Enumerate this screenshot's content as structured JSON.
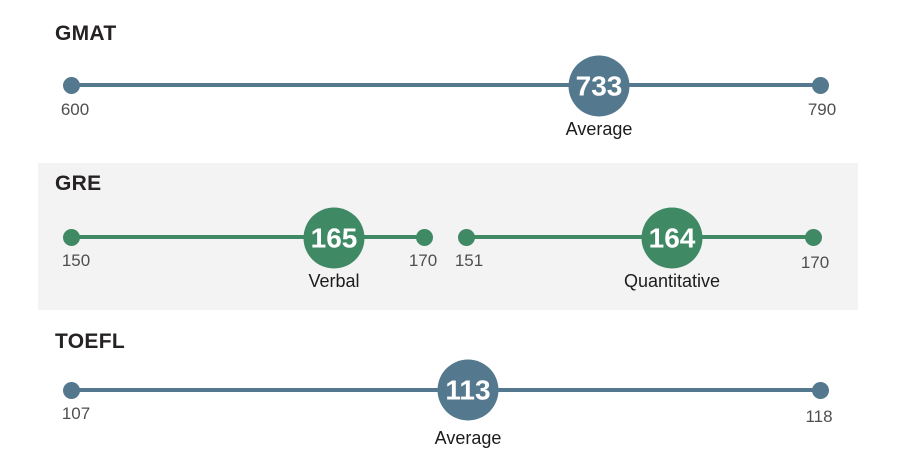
{
  "palette": {
    "blue": "#54788e",
    "green": "#3f8a64",
    "section_bg": "#f3f3f3",
    "title_color": "#262224",
    "range_label_color": "#4f4f4f",
    "avg_label_color": "#1c1c1c",
    "circle_text_color": "#ffffff"
  },
  "sections": {
    "gmat": {
      "title": "GMAT",
      "min": "600",
      "max": "790",
      "average_value": "733",
      "average_label": "Average"
    },
    "gre": {
      "title": "GRE",
      "verbal": {
        "min": "150",
        "max": "170",
        "average_value": "165",
        "label": "Verbal"
      },
      "quantitative": {
        "min": "151",
        "max": "170",
        "average_value": "164",
        "label": "Quantitative"
      }
    },
    "toefl": {
      "title": "TOEFL",
      "min": "107",
      "max": "118",
      "average_value": "113",
      "average_label": "Average"
    }
  },
  "chart_data": [
    {
      "type": "line",
      "subtype": "dumbbell-range",
      "title": "GMAT",
      "color": "#54788e",
      "series": [
        {
          "name": "Average",
          "min": 600,
          "max": 790,
          "average": 733
        }
      ]
    },
    {
      "type": "line",
      "subtype": "dumbbell-range",
      "title": "GRE",
      "color": "#3f8a64",
      "highlighted_background": "#f3f3f3",
      "series": [
        {
          "name": "Verbal",
          "min": 150,
          "max": 170,
          "average": 165
        },
        {
          "name": "Quantitative",
          "min": 151,
          "max": 170,
          "average": 164
        }
      ]
    },
    {
      "type": "line",
      "subtype": "dumbbell-range",
      "title": "TOEFL",
      "color": "#54788e",
      "series": [
        {
          "name": "Average",
          "min": 107,
          "max": 118,
          "average": 113
        }
      ]
    }
  ]
}
